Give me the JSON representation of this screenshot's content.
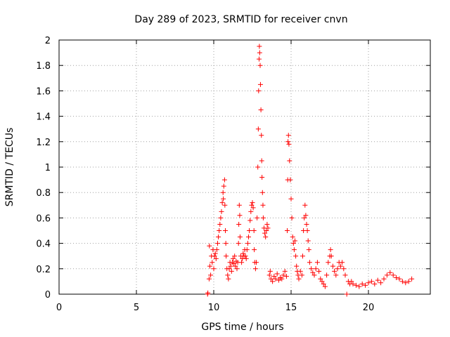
{
  "chart_data": {
    "type": "scatter",
    "title": "Day 289 of 2023, SRMTID for receiver cnvn",
    "xlabel": "GPS time / hours",
    "ylabel": "SRMTID / TECUs",
    "xlim": [
      0,
      24
    ],
    "ylim": [
      0,
      2
    ],
    "x_ticks": [
      0,
      5,
      10,
      15,
      20
    ],
    "x_tick_labels": [
      "0",
      "5",
      "10",
      "15",
      "20"
    ],
    "y_ticks": [
      0,
      0.2,
      0.4,
      0.6,
      0.8,
      1,
      1.2,
      1.4,
      1.6,
      1.8,
      2
    ],
    "y_tick_labels": [
      "0",
      "0.2",
      "0.4",
      "0.6",
      "0.8",
      "1",
      "1.2",
      "1.4",
      "1.6",
      "1.8",
      "2"
    ],
    "grid": true,
    "marker": "+",
    "series": [
      {
        "name": "SRMTID",
        "color": "#ff0000",
        "points": [
          [
            9.6,
            0.0
          ],
          [
            9.62,
            0.01
          ],
          [
            9.7,
            0.12
          ],
          [
            9.72,
            0.38
          ],
          [
            9.75,
            0.22
          ],
          [
            9.8,
            0.15
          ],
          [
            9.85,
            0.3
          ],
          [
            9.9,
            0.25
          ],
          [
            9.95,
            0.35
          ],
          [
            10.0,
            0.2
          ],
          [
            10.05,
            0.3
          ],
          [
            10.1,
            0.32
          ],
          [
            10.15,
            0.28
          ],
          [
            10.2,
            0.35
          ],
          [
            10.25,
            0.4
          ],
          [
            10.3,
            0.45
          ],
          [
            10.35,
            0.5
          ],
          [
            10.4,
            0.55
          ],
          [
            10.45,
            0.6
          ],
          [
            10.5,
            0.65
          ],
          [
            10.55,
            0.72
          ],
          [
            10.6,
            0.8
          ],
          [
            10.62,
            0.75
          ],
          [
            10.65,
            0.85
          ],
          [
            10.7,
            0.9
          ],
          [
            10.72,
            0.7
          ],
          [
            10.75,
            0.5
          ],
          [
            10.78,
            0.4
          ],
          [
            10.8,
            0.3
          ],
          [
            10.85,
            0.2
          ],
          [
            10.9,
            0.15
          ],
          [
            10.95,
            0.12
          ],
          [
            11.0,
            0.2
          ],
          [
            11.05,
            0.25
          ],
          [
            11.1,
            0.22
          ],
          [
            11.15,
            0.18
          ],
          [
            11.2,
            0.25
          ],
          [
            11.25,
            0.28
          ],
          [
            11.3,
            0.24
          ],
          [
            11.35,
            0.3
          ],
          [
            11.4,
            0.22
          ],
          [
            11.45,
            0.26
          ],
          [
            11.5,
            0.2
          ],
          [
            11.55,
            0.25
          ],
          [
            11.6,
            0.4
          ],
          [
            11.62,
            0.55
          ],
          [
            11.65,
            0.7
          ],
          [
            11.68,
            0.62
          ],
          [
            11.7,
            0.45
          ],
          [
            11.75,
            0.3
          ],
          [
            11.8,
            0.25
          ],
          [
            11.85,
            0.28
          ],
          [
            11.9,
            0.32
          ],
          [
            11.95,
            0.3
          ],
          [
            12.0,
            0.35
          ],
          [
            12.05,
            0.3
          ],
          [
            12.1,
            0.28
          ],
          [
            12.15,
            0.35
          ],
          [
            12.2,
            0.4
          ],
          [
            12.25,
            0.45
          ],
          [
            12.3,
            0.5
          ],
          [
            12.35,
            0.58
          ],
          [
            12.4,
            0.65
          ],
          [
            12.45,
            0.7
          ],
          [
            12.5,
            0.72
          ],
          [
            12.55,
            0.68
          ],
          [
            12.6,
            0.5
          ],
          [
            12.62,
            0.35
          ],
          [
            12.65,
            0.25
          ],
          [
            12.7,
            0.2
          ],
          [
            12.75,
            0.25
          ],
          [
            12.8,
            0.6
          ],
          [
            12.85,
            1.0
          ],
          [
            12.88,
            1.3
          ],
          [
            12.9,
            1.6
          ],
          [
            12.93,
            1.85
          ],
          [
            12.95,
            1.95
          ],
          [
            12.97,
            1.9
          ],
          [
            13.0,
            1.8
          ],
          [
            13.02,
            1.65
          ],
          [
            13.05,
            1.45
          ],
          [
            13.08,
            1.25
          ],
          [
            13.1,
            1.05
          ],
          [
            13.12,
            0.92
          ],
          [
            13.15,
            0.8
          ],
          [
            13.18,
            0.7
          ],
          [
            13.2,
            0.6
          ],
          [
            13.25,
            0.52
          ],
          [
            13.3,
            0.48
          ],
          [
            13.35,
            0.45
          ],
          [
            13.4,
            0.5
          ],
          [
            13.45,
            0.55
          ],
          [
            13.5,
            0.52
          ],
          [
            13.6,
            0.15
          ],
          [
            13.65,
            0.18
          ],
          [
            13.7,
            0.12
          ],
          [
            13.8,
            0.1
          ],
          [
            13.9,
            0.14
          ],
          [
            14.0,
            0.12
          ],
          [
            14.1,
            0.16
          ],
          [
            14.2,
            0.11
          ],
          [
            14.3,
            0.13
          ],
          [
            14.4,
            0.12
          ],
          [
            14.5,
            0.15
          ],
          [
            14.6,
            0.18
          ],
          [
            14.7,
            0.14
          ],
          [
            14.75,
            0.5
          ],
          [
            14.78,
            0.9
          ],
          [
            14.8,
            1.2
          ],
          [
            14.83,
            1.25
          ],
          [
            14.86,
            1.18
          ],
          [
            14.9,
            1.05
          ],
          [
            14.95,
            0.9
          ],
          [
            15.0,
            0.75
          ],
          [
            15.05,
            0.6
          ],
          [
            15.1,
            0.45
          ],
          [
            15.15,
            0.4
          ],
          [
            15.2,
            0.35
          ],
          [
            15.25,
            0.42
          ],
          [
            15.3,
            0.3
          ],
          [
            15.35,
            0.22
          ],
          [
            15.4,
            0.18
          ],
          [
            15.45,
            0.15
          ],
          [
            15.5,
            0.12
          ],
          [
            15.6,
            0.18
          ],
          [
            15.7,
            0.15
          ],
          [
            15.75,
            0.3
          ],
          [
            15.8,
            0.5
          ],
          [
            15.85,
            0.6
          ],
          [
            15.9,
            0.7
          ],
          [
            15.95,
            0.62
          ],
          [
            16.0,
            0.55
          ],
          [
            16.05,
            0.5
          ],
          [
            16.1,
            0.42
          ],
          [
            16.15,
            0.35
          ],
          [
            16.2,
            0.25
          ],
          [
            16.3,
            0.2
          ],
          [
            16.4,
            0.17
          ],
          [
            16.5,
            0.15
          ],
          [
            16.6,
            0.2
          ],
          [
            16.7,
            0.25
          ],
          [
            16.8,
            0.18
          ],
          [
            16.9,
            0.12
          ],
          [
            17.0,
            0.1
          ],
          [
            17.1,
            0.08
          ],
          [
            17.2,
            0.06
          ],
          [
            17.3,
            0.15
          ],
          [
            17.4,
            0.25
          ],
          [
            17.5,
            0.3
          ],
          [
            17.55,
            0.35
          ],
          [
            17.6,
            0.3
          ],
          [
            17.7,
            0.22
          ],
          [
            17.8,
            0.18
          ],
          [
            17.9,
            0.15
          ],
          [
            18.0,
            0.2
          ],
          [
            18.1,
            0.25
          ],
          [
            18.2,
            0.22
          ],
          [
            18.3,
            0.25
          ],
          [
            18.4,
            0.2
          ],
          [
            18.5,
            0.15
          ],
          [
            18.6,
            0.0
          ],
          [
            18.7,
            0.1
          ],
          [
            18.8,
            0.08
          ],
          [
            18.9,
            0.1
          ],
          [
            19.0,
            0.08
          ],
          [
            19.2,
            0.07
          ],
          [
            19.4,
            0.06
          ],
          [
            19.6,
            0.08
          ],
          [
            19.8,
            0.07
          ],
          [
            20.0,
            0.09
          ],
          [
            20.2,
            0.1
          ],
          [
            20.4,
            0.08
          ],
          [
            20.6,
            0.11
          ],
          [
            20.8,
            0.09
          ],
          [
            21.0,
            0.12
          ],
          [
            21.2,
            0.15
          ],
          [
            21.4,
            0.17
          ],
          [
            21.6,
            0.15
          ],
          [
            21.8,
            0.13
          ],
          [
            22.0,
            0.12
          ],
          [
            22.2,
            0.1
          ],
          [
            22.4,
            0.09
          ],
          [
            22.6,
            0.1
          ],
          [
            22.8,
            0.12
          ]
        ]
      }
    ]
  }
}
